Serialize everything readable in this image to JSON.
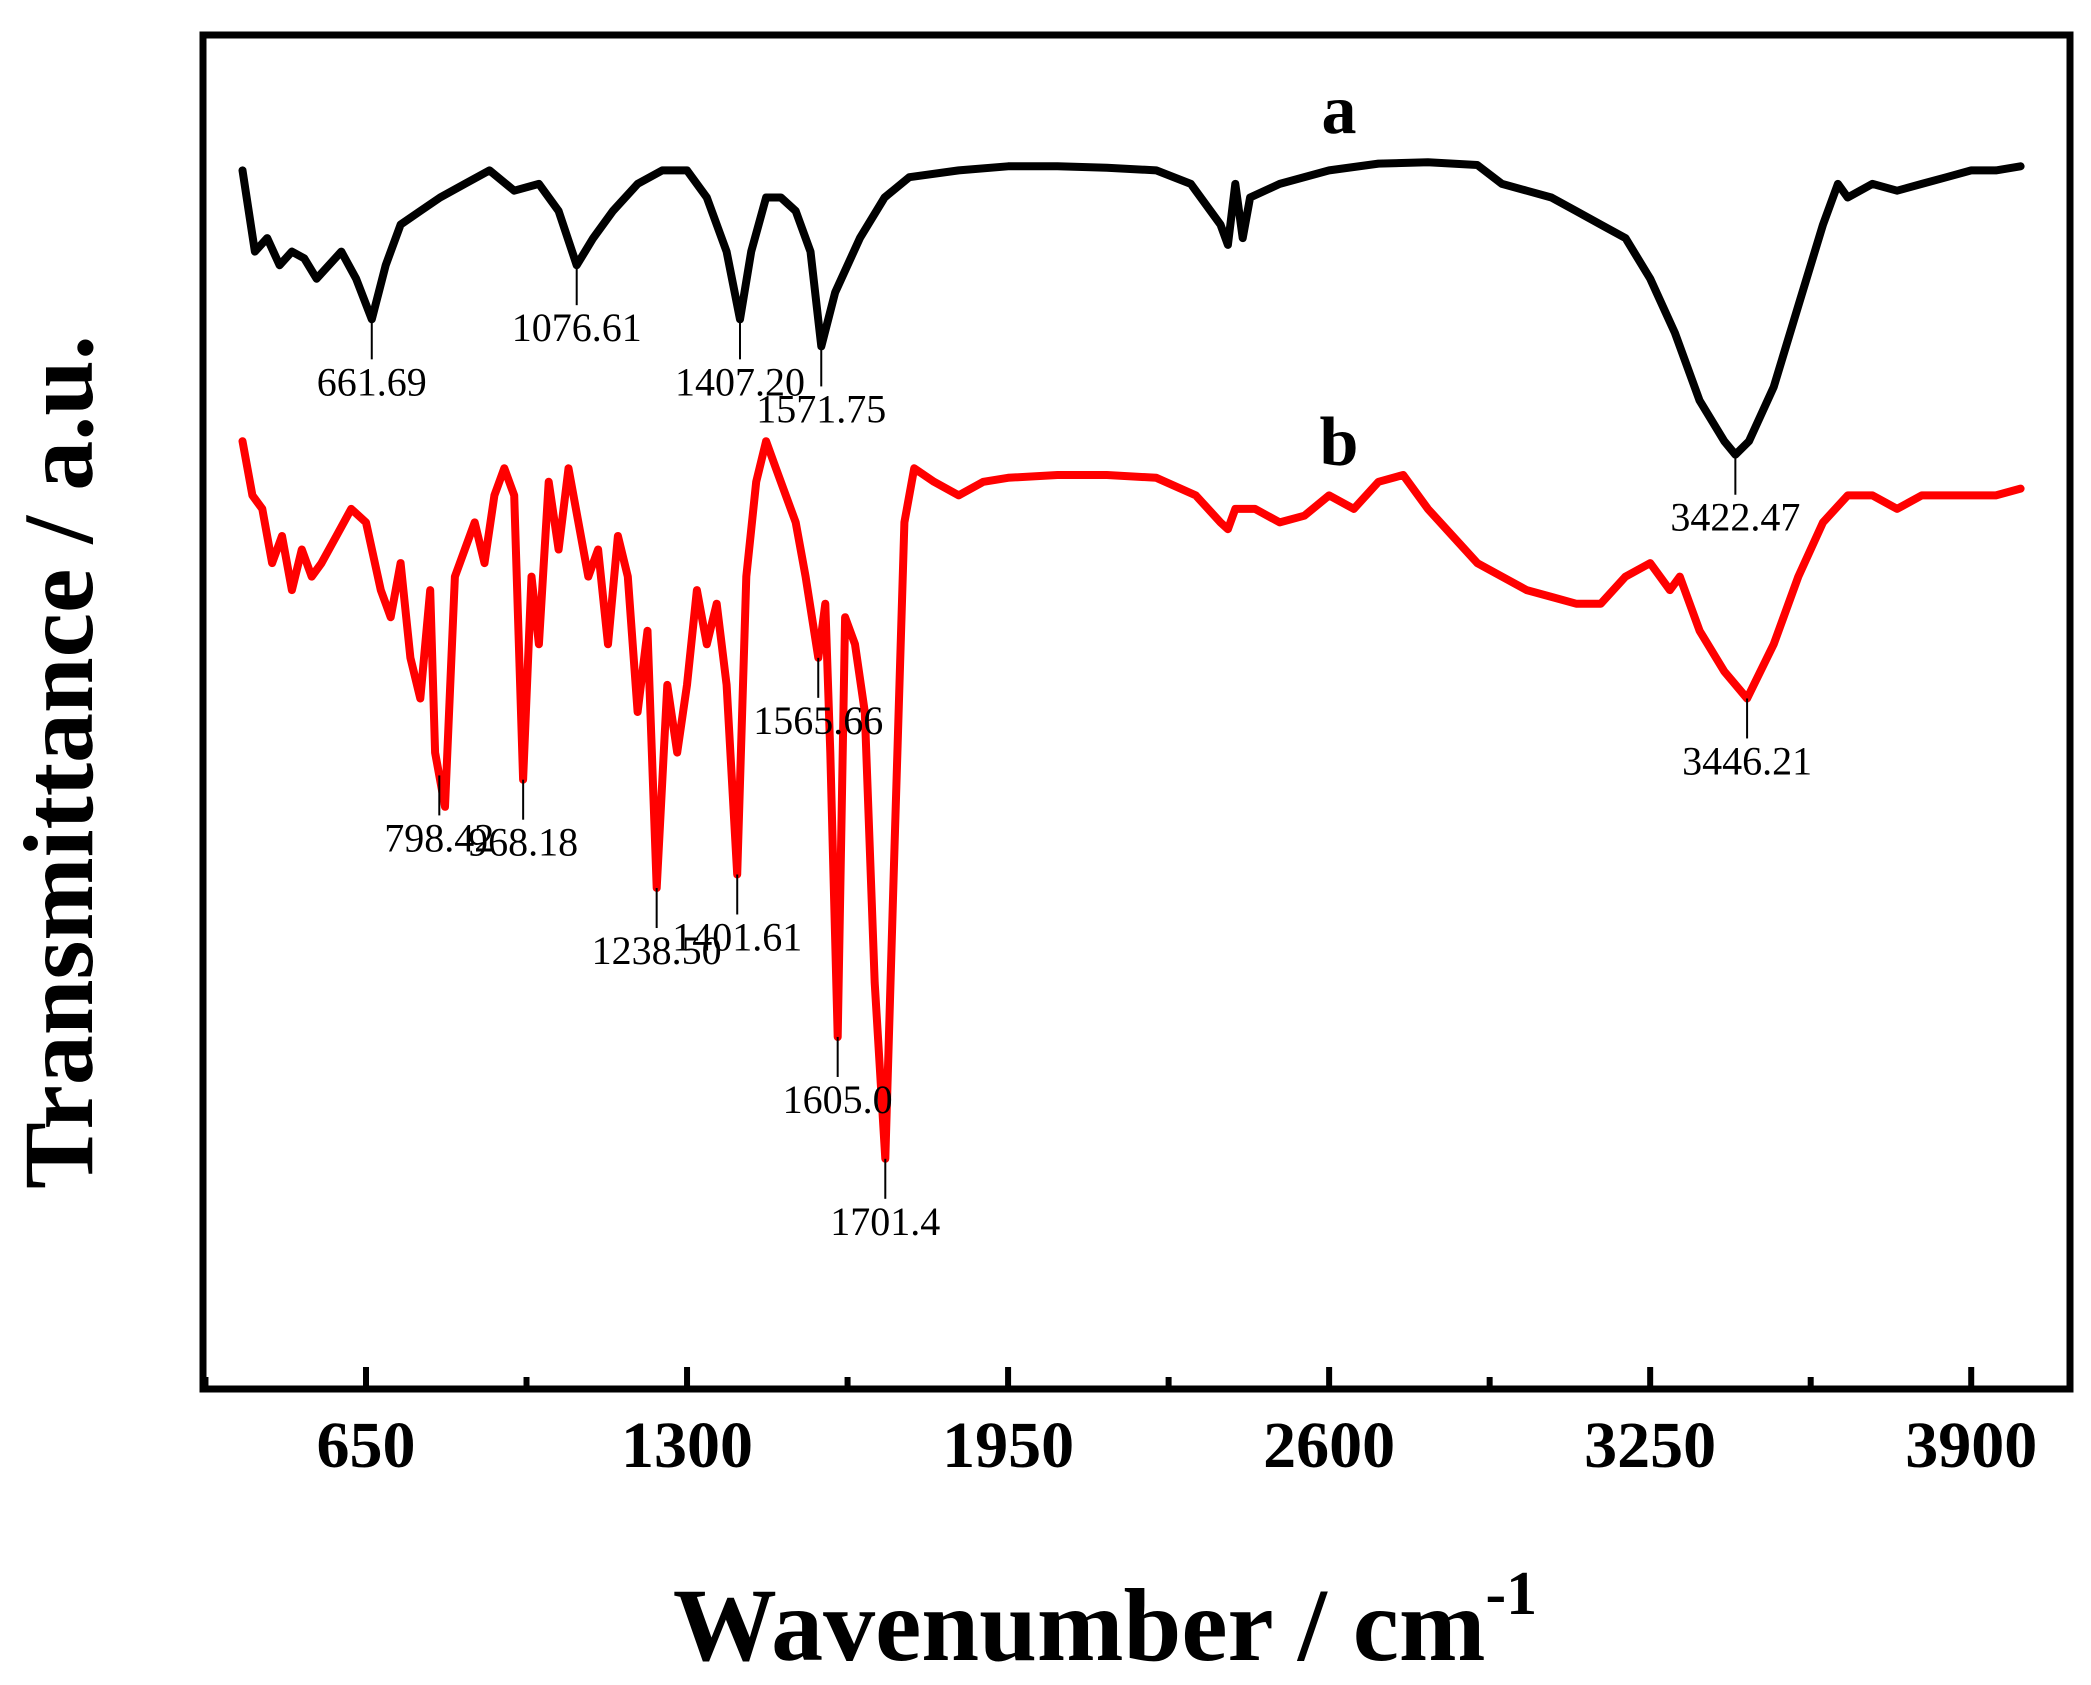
{
  "chart_data": {
    "type": "line",
    "title": "",
    "xlabel": "Wavenumber / cm",
    "xlabel_superscript": "-1",
    "ylabel": "Transmittance / a.u.",
    "xlim": [
      320,
      4100
    ],
    "ylim": [
      0,
      100
    ],
    "x_ticks": [
      650,
      1300,
      1950,
      2600,
      3250,
      3900
    ],
    "x_tick_labels": [
      "650",
      "1300",
      "1950",
      "2600",
      "3250",
      "3900"
    ],
    "x_minor_ticks": [
      325,
      975,
      1625,
      2275,
      2925,
      3575
    ],
    "y_ticks_shown": false,
    "grid": false,
    "series": [
      {
        "name": "a",
        "color": "#000000",
        "points": [
          [
            400,
            90
          ],
          [
            425,
            84
          ],
          [
            450,
            85
          ],
          [
            475,
            83
          ],
          [
            500,
            84
          ],
          [
            525,
            83.5
          ],
          [
            550,
            82
          ],
          [
            575,
            83
          ],
          [
            600,
            84
          ],
          [
            630,
            82
          ],
          [
            661.69,
            79
          ],
          [
            690,
            83
          ],
          [
            720,
            86
          ],
          [
            760,
            87
          ],
          [
            800,
            88
          ],
          [
            850,
            89
          ],
          [
            900,
            90
          ],
          [
            950,
            88.5
          ],
          [
            1000,
            89
          ],
          [
            1040,
            87
          ],
          [
            1076.61,
            83
          ],
          [
            1110,
            85
          ],
          [
            1150,
            87
          ],
          [
            1200,
            89
          ],
          [
            1250,
            90
          ],
          [
            1300,
            90
          ],
          [
            1340,
            88
          ],
          [
            1380,
            84
          ],
          [
            1407.2,
            79
          ],
          [
            1430,
            84
          ],
          [
            1460,
            88
          ],
          [
            1490,
            88
          ],
          [
            1520,
            87
          ],
          [
            1550,
            84
          ],
          [
            1571.75,
            77
          ],
          [
            1600,
            81
          ],
          [
            1650,
            85
          ],
          [
            1700,
            88
          ],
          [
            1750,
            89.5
          ],
          [
            1850,
            90
          ],
          [
            1950,
            90.3
          ],
          [
            2050,
            90.3
          ],
          [
            2150,
            90.2
          ],
          [
            2250,
            90
          ],
          [
            2320,
            89
          ],
          [
            2380,
            86
          ],
          [
            2395,
            84.5
          ],
          [
            2410,
            89
          ],
          [
            2425,
            85
          ],
          [
            2440,
            88
          ],
          [
            2500,
            89
          ],
          [
            2600,
            90
          ],
          [
            2700,
            90.5
          ],
          [
            2800,
            90.6
          ],
          [
            2900,
            90.4
          ],
          [
            2950,
            89
          ],
          [
            3000,
            88.5
          ],
          [
            3050,
            88
          ],
          [
            3100,
            87
          ],
          [
            3150,
            86
          ],
          [
            3200,
            85
          ],
          [
            3250,
            82
          ],
          [
            3300,
            78
          ],
          [
            3350,
            73
          ],
          [
            3400,
            70
          ],
          [
            3422.47,
            69
          ],
          [
            3450,
            70
          ],
          [
            3500,
            74
          ],
          [
            3550,
            80
          ],
          [
            3600,
            86
          ],
          [
            3630,
            89
          ],
          [
            3650,
            88
          ],
          [
            3700,
            89
          ],
          [
            3750,
            88.5
          ],
          [
            3800,
            89
          ],
          [
            3850,
            89.5
          ],
          [
            3900,
            90
          ],
          [
            3950,
            90
          ],
          [
            4000,
            90.3
          ]
        ],
        "peaks": [
          {
            "x": 661.69,
            "label": "661.69",
            "position": "below"
          },
          {
            "x": 1076.61,
            "label": "1076.61",
            "position": "below"
          },
          {
            "x": 1407.2,
            "label": "1407.20",
            "position": "below"
          },
          {
            "x": 1571.75,
            "label": "1571.75",
            "position": "below"
          },
          {
            "x": 3422.47,
            "label": "3422.47",
            "position": "below"
          }
        ]
      },
      {
        "name": "b",
        "color": "#ff0000",
        "points": [
          [
            400,
            70
          ],
          [
            420,
            66
          ],
          [
            440,
            65
          ],
          [
            460,
            61
          ],
          [
            480,
            63
          ],
          [
            500,
            59
          ],
          [
            520,
            62
          ],
          [
            540,
            60
          ],
          [
            560,
            61
          ],
          [
            590,
            63
          ],
          [
            620,
            65
          ],
          [
            650,
            64
          ],
          [
            680,
            59
          ],
          [
            700,
            57
          ],
          [
            720,
            61
          ],
          [
            740,
            54
          ],
          [
            760,
            51
          ],
          [
            780,
            59
          ],
          [
            790,
            47
          ],
          [
            810,
            43
          ],
          [
            830,
            60
          ],
          [
            850,
            62
          ],
          [
            870,
            64
          ],
          [
            890,
            61
          ],
          [
            910,
            66
          ],
          [
            930,
            68
          ],
          [
            950,
            66
          ],
          [
            968.18,
            45
          ],
          [
            985,
            60
          ],
          [
            1000,
            55
          ],
          [
            1020,
            67
          ],
          [
            1040,
            62
          ],
          [
            1060,
            68
          ],
          [
            1080,
            64
          ],
          [
            1100,
            60
          ],
          [
            1120,
            62
          ],
          [
            1140,
            55
          ],
          [
            1160,
            63
          ],
          [
            1180,
            60
          ],
          [
            1200,
            50
          ],
          [
            1220,
            56
          ],
          [
            1238.5,
            37
          ],
          [
            1260,
            52
          ],
          [
            1280,
            47
          ],
          [
            1300,
            52
          ],
          [
            1320,
            59
          ],
          [
            1340,
            55
          ],
          [
            1360,
            58
          ],
          [
            1380,
            52
          ],
          [
            1401.61,
            38
          ],
          [
            1420,
            60
          ],
          [
            1440,
            67
          ],
          [
            1460,
            70
          ],
          [
            1480,
            68
          ],
          [
            1500,
            66
          ],
          [
            1520,
            64
          ],
          [
            1540,
            60
          ],
          [
            1565.66,
            54
          ],
          [
            1580,
            58
          ],
          [
            1590,
            47
          ],
          [
            1605,
            26
          ],
          [
            1620,
            57
          ],
          [
            1640,
            55
          ],
          [
            1660,
            50
          ],
          [
            1680,
            30
          ],
          [
            1701.4,
            17
          ],
          [
            1720,
            40
          ],
          [
            1740,
            64
          ],
          [
            1760,
            68
          ],
          [
            1800,
            67
          ],
          [
            1850,
            66
          ],
          [
            1900,
            67
          ],
          [
            1950,
            67.3
          ],
          [
            2050,
            67.5
          ],
          [
            2150,
            67.5
          ],
          [
            2250,
            67.3
          ],
          [
            2330,
            66
          ],
          [
            2380,
            64
          ],
          [
            2395,
            63.5
          ],
          [
            2410,
            65
          ],
          [
            2450,
            65
          ],
          [
            2500,
            64
          ],
          [
            2550,
            64.5
          ],
          [
            2600,
            66
          ],
          [
            2650,
            65
          ],
          [
            2700,
            67
          ],
          [
            2750,
            67.5
          ],
          [
            2800,
            65
          ],
          [
            2850,
            63
          ],
          [
            2900,
            61
          ],
          [
            2950,
            60
          ],
          [
            3000,
            59
          ],
          [
            3050,
            58.5
          ],
          [
            3100,
            58
          ],
          [
            3150,
            58
          ],
          [
            3200,
            60
          ],
          [
            3250,
            61
          ],
          [
            3290,
            59
          ],
          [
            3310,
            60
          ],
          [
            3350,
            56
          ],
          [
            3400,
            53
          ],
          [
            3446.21,
            51
          ],
          [
            3500,
            55
          ],
          [
            3550,
            60
          ],
          [
            3600,
            64
          ],
          [
            3650,
            66
          ],
          [
            3700,
            66
          ],
          [
            3750,
            65
          ],
          [
            3800,
            66
          ],
          [
            3850,
            66
          ],
          [
            3900,
            66
          ],
          [
            3950,
            66
          ],
          [
            4000,
            66.5
          ]
        ],
        "peaks": [
          {
            "x": 798.42,
            "label": "798.42",
            "position": "below"
          },
          {
            "x": 968.18,
            "label": "968.18",
            "position": "below"
          },
          {
            "x": 1238.5,
            "label": "1238.50",
            "position": "below"
          },
          {
            "x": 1401.61,
            "label": "1401.61",
            "position": "below"
          },
          {
            "x": 1565.66,
            "label": "1565.66",
            "position": "below"
          },
          {
            "x": 1605.0,
            "label": "1605.0",
            "position": "below"
          },
          {
            "x": 1701.4,
            "label": "1701.4",
            "position": "below"
          },
          {
            "x": 3446.21,
            "label": "3446.21",
            "position": "below"
          }
        ]
      }
    ]
  }
}
